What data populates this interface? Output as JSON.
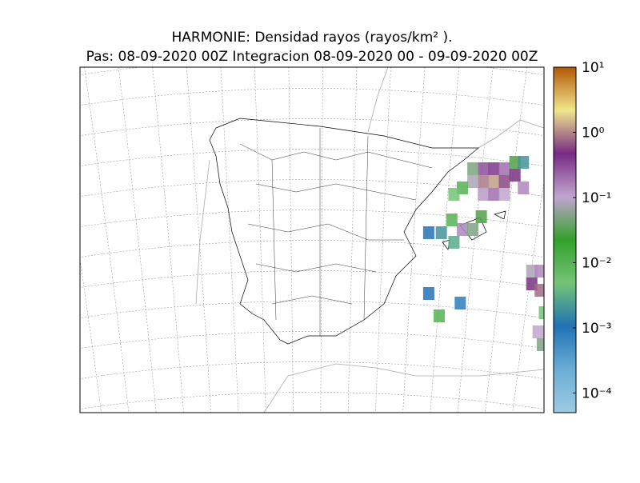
{
  "title": "HARMONIE: Densidad rayos  (rayos/km² ).",
  "subtitle": "Pas: 08-09-2020 00Z Integracion 08-09-2020 00 - 09-09-2020 00Z",
  "colorbar": {
    "log_scale": true,
    "ylim": [
      5e-05,
      10
    ],
    "yticks": [
      {
        "value": 10,
        "label": "10¹"
      },
      {
        "value": 1,
        "label": "10⁰"
      },
      {
        "value": 0.1,
        "label": "10⁻¹"
      },
      {
        "value": 0.01,
        "label": "10⁻²"
      },
      {
        "value": 0.001,
        "label": "10⁻³"
      },
      {
        "value": 0.0001,
        "label": "10⁻⁴"
      }
    ],
    "colors": [
      "#9ecae1",
      "#6baed6",
      "#2171b5",
      "#74c476",
      "#33a02c",
      "#c2a5cf",
      "#762a83",
      "#f0e68c",
      "#b35806"
    ]
  },
  "cells": [
    {
      "lon": 3.6,
      "lat": 41.7,
      "value": 0.9
    },
    {
      "lon": 4.1,
      "lat": 41.7,
      "value": 1.2
    },
    {
      "lon": 4.6,
      "lat": 41.7,
      "value": 0.6
    },
    {
      "lon": 3.6,
      "lat": 42.1,
      "value": 0.3
    },
    {
      "lon": 4.1,
      "lat": 42.1,
      "value": 0.4
    },
    {
      "lon": 4.6,
      "lat": 42.1,
      "value": 0.2
    },
    {
      "lon": 5.1,
      "lat": 41.9,
      "value": 0.5
    },
    {
      "lon": 3.1,
      "lat": 41.7,
      "value": 0.08
    },
    {
      "lon": 3.1,
      "lat": 42.1,
      "value": 0.05
    },
    {
      "lon": 5.1,
      "lat": 42.3,
      "value": 0.03
    },
    {
      "lon": 5.5,
      "lat": 41.5,
      "value": 0.15
    },
    {
      "lon": 3.6,
      "lat": 41.3,
      "value": 0.12
    },
    {
      "lon": 4.1,
      "lat": 41.3,
      "value": 0.2
    },
    {
      "lon": 4.6,
      "lat": 41.3,
      "value": 0.1
    },
    {
      "lon": 2.6,
      "lat": 41.5,
      "value": 0.01
    },
    {
      "lon": 2.2,
      "lat": 41.3,
      "value": 0.005
    },
    {
      "lon": 5.5,
      "lat": 42.3,
      "value": 0.002
    },
    {
      "lon": 2.6,
      "lat": 40.2,
      "value": 0.15
    },
    {
      "lon": 3.1,
      "lat": 40.2,
      "value": 0.05
    },
    {
      "lon": 2.1,
      "lat": 40.5,
      "value": 0.01
    },
    {
      "lon": 3.5,
      "lat": 40.6,
      "value": 0.03
    },
    {
      "lon": 1.0,
      "lat": 40.1,
      "value": 0.001
    },
    {
      "lon": 1.6,
      "lat": 40.1,
      "value": 0.002
    },
    {
      "lon": 2.2,
      "lat": 39.8,
      "value": 0.003
    },
    {
      "lon": 5.9,
      "lat": 38.5,
      "value": 0.5
    },
    {
      "lon": 6.3,
      "lat": 38.3,
      "value": 0.8
    },
    {
      "lon": 5.9,
      "lat": 38.9,
      "value": 0.08
    },
    {
      "lon": 6.3,
      "lat": 38.9,
      "value": 0.15
    },
    {
      "lon": 6.2,
      "lat": 37.0,
      "value": 0.1
    },
    {
      "lon": 6.4,
      "lat": 36.6,
      "value": 0.05
    },
    {
      "lon": 6.5,
      "lat": 37.6,
      "value": 0.005
    },
    {
      "lon": 1.0,
      "lat": 38.2,
      "value": 0.001
    },
    {
      "lon": 1.5,
      "lat": 37.5,
      "value": 0.01
    },
    {
      "lon": 2.5,
      "lat": 37.9,
      "value": 0.0008
    }
  ]
}
